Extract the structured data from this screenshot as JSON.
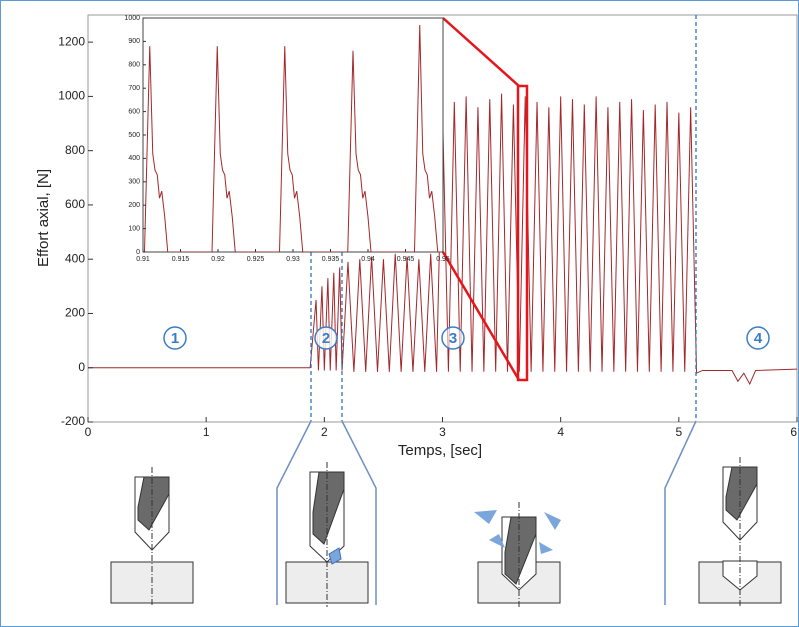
{
  "chart_data": [
    {
      "type": "line",
      "xlabel": "Temps, [sec]",
      "ylabel": "Effort axial, [N]",
      "xlim": [
        0,
        6
      ],
      "ylim": [
        -200,
        1300
      ],
      "xticks": [
        0,
        1,
        2,
        3,
        4,
        5,
        6
      ],
      "yticks": [
        -200,
        0,
        200,
        400,
        600,
        800,
        1000,
        1200
      ],
      "x": [
        0,
        1.88,
        1.93,
        1.95,
        1.98,
        2.0,
        2.03,
        2.05,
        2.08,
        2.1,
        2.13,
        2.15,
        2.2,
        2.25,
        2.3,
        2.35,
        2.4,
        2.45,
        2.5,
        2.55,
        2.6,
        2.65,
        2.7,
        2.75,
        2.8,
        2.85,
        2.9,
        2.95,
        3.0,
        3.05,
        3.1,
        3.15,
        3.2,
        3.25,
        3.3,
        3.35,
        3.4,
        3.45,
        3.5,
        3.55,
        3.6,
        3.65,
        3.7,
        3.75,
        3.8,
        3.85,
        3.9,
        3.95,
        4.0,
        4.05,
        4.1,
        4.15,
        4.2,
        4.25,
        4.3,
        4.35,
        4.4,
        4.45,
        4.5,
        4.55,
        4.6,
        4.65,
        4.7,
        4.75,
        4.8,
        4.85,
        4.9,
        4.95,
        5.0,
        5.05,
        5.1,
        5.15,
        5.2,
        5.45,
        5.5,
        5.55,
        5.6,
        5.65,
        6.0
      ],
      "series": [
        {
          "color": "#a3282b",
          "values": [
            0,
            0,
            250,
            -10,
            300,
            -10,
            330,
            -10,
            350,
            -10,
            370,
            -10,
            390,
            -15,
            400,
            -15,
            410,
            -15,
            400,
            -15,
            420,
            -15,
            410,
            -15,
            400,
            -15,
            420,
            -15,
            950,
            -15,
            980,
            -15,
            1000,
            -15,
            960,
            -15,
            990,
            -15,
            1010,
            -15,
            970,
            -15,
            1000,
            -15,
            980,
            -15,
            960,
            -15,
            1000,
            -15,
            990,
            -15,
            970,
            -15,
            1000,
            -15,
            960,
            -15,
            980,
            -15,
            990,
            -15,
            950,
            -15,
            970,
            -15,
            980,
            -15,
            940,
            -15,
            960,
            -20,
            -10,
            -10,
            -50,
            -20,
            -60,
            -10,
            -5
          ]
        }
      ],
      "annotations": [
        "1",
        "2",
        "3",
        "4"
      ]
    },
    {
      "type": "line",
      "xlim": [
        0.91,
        0.95
      ],
      "ylim": [
        0,
        1000
      ],
      "xticks": [
        0.91,
        0.915,
        0.92,
        0.925,
        0.93,
        0.935,
        0.94,
        0.945,
        0.95
      ],
      "yticks": [
        0,
        100,
        200,
        300,
        400,
        500,
        600,
        700,
        800,
        900,
        1000
      ],
      "x": [
        0.91,
        0.9102,
        0.9109,
        0.9113,
        0.9116,
        0.9119,
        0.9122,
        0.9125,
        0.9129,
        0.9133,
        0.9192,
        0.9199,
        0.9203,
        0.9206,
        0.9209,
        0.9212,
        0.9215,
        0.9219,
        0.9223,
        0.9282,
        0.9289,
        0.9293,
        0.9296,
        0.9299,
        0.9302,
        0.9305,
        0.9309,
        0.9313,
        0.9373,
        0.938,
        0.9384,
        0.9387,
        0.939,
        0.9393,
        0.9396,
        0.94,
        0.9404,
        0.9462,
        0.9469,
        0.9473,
        0.9476,
        0.9479,
        0.9482,
        0.9485,
        0.9489,
        0.9493,
        0.95
      ],
      "series": [
        {
          "color": "#a3282b",
          "values": [
            0,
            0,
            880,
            420,
            350,
            330,
            230,
            260,
            150,
            0,
            0,
            880,
            420,
            350,
            330,
            230,
            260,
            150,
            0,
            0,
            880,
            420,
            350,
            330,
            230,
            260,
            150,
            0,
            0,
            860,
            420,
            350,
            330,
            230,
            260,
            150,
            0,
            0,
            970,
            420,
            350,
            330,
            230,
            260,
            150,
            0,
            0
          ]
        }
      ]
    }
  ]
}
